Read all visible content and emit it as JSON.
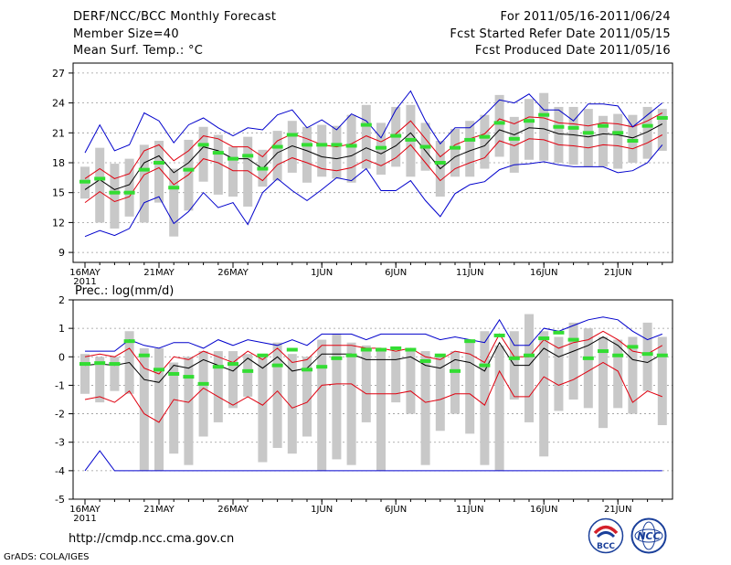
{
  "header": {
    "title": "DERF/NCC/BCC Monthly Forecast",
    "member_size": "Member Size=40",
    "variable": "Mean Surf. Temp.: °C",
    "period": "For 2011/05/16-2011/06/24",
    "fcst_started": "Fcst Started Refer Date 2011/05/15",
    "fcst_produced": "Fcst Produced Date 2011/05/16"
  },
  "footer": {
    "url": "http://cmdp.ncc.cma.gov.cn",
    "credit": "GrADS: COLA/IGES",
    "logo_left_text": "BCC",
    "logo_right_text": "NCC"
  },
  "colors": {
    "mean": "#000000",
    "spread": "#e0000f",
    "extreme": "#0000cc",
    "box": "#c8c8c8",
    "marker": "#33dd33"
  },
  "chart_data": [
    {
      "type": "line",
      "title": "Mean Surf. Temp.: °C",
      "days": 40,
      "x_tick_labels": [
        "16MAY",
        "21MAY",
        "26MAY",
        "1JUN",
        "6JUN",
        "11JUN",
        "16JUN",
        "21JUN"
      ],
      "x_tick_days": [
        0,
        5,
        10,
        16,
        21,
        26,
        31,
        36
      ],
      "year_label": "2011",
      "ylim": [
        8,
        28
      ],
      "y_ticks": [
        9,
        12,
        15,
        18,
        21,
        24,
        27
      ],
      "series": [
        {
          "name": "ensemble mean",
          "values": [
            15.3,
            16.3,
            15.3,
            15.8,
            18.0,
            18.7,
            17.0,
            18.0,
            19.6,
            19.2,
            18.4,
            18.4,
            17.4,
            19.0,
            19.7,
            19.2,
            18.6,
            18.4,
            18.7,
            19.5,
            18.9,
            19.7,
            21.0,
            19.2,
            17.4,
            18.6,
            19.2,
            19.7,
            21.3,
            20.8,
            21.5,
            21.4,
            20.9,
            20.8,
            20.6,
            20.9,
            20.8,
            20.5,
            21.1,
            21.9
          ]
        },
        {
          "name": "upper spread",
          "values": [
            16.4,
            17.4,
            16.4,
            16.9,
            19.2,
            19.8,
            18.2,
            19.2,
            20.7,
            20.4,
            19.6,
            19.6,
            18.6,
            20.2,
            20.9,
            20.4,
            19.8,
            19.6,
            19.9,
            20.7,
            20.1,
            20.9,
            22.2,
            20.4,
            18.6,
            19.8,
            20.4,
            20.9,
            22.4,
            21.9,
            22.6,
            22.5,
            22.0,
            21.9,
            21.7,
            22.0,
            21.9,
            21.6,
            22.2,
            23.0
          ]
        },
        {
          "name": "lower spread",
          "values": [
            14.0,
            15.1,
            14.1,
            14.6,
            16.8,
            17.5,
            15.8,
            16.8,
            18.4,
            18.0,
            17.2,
            17.2,
            16.2,
            17.8,
            18.5,
            18.0,
            17.4,
            17.2,
            17.5,
            18.3,
            17.7,
            18.5,
            19.8,
            18.0,
            16.2,
            17.4,
            18.0,
            18.5,
            20.2,
            19.7,
            20.4,
            20.3,
            19.8,
            19.7,
            19.5,
            19.8,
            19.7,
            19.4,
            20.0,
            20.8
          ]
        },
        {
          "name": "ensemble max",
          "values": [
            19.0,
            21.8,
            19.2,
            19.8,
            23.0,
            22.2,
            20.0,
            21.8,
            22.5,
            21.5,
            20.7,
            21.5,
            21.3,
            22.8,
            23.3,
            21.5,
            22.3,
            21.3,
            22.9,
            22.2,
            20.5,
            23.3,
            25.2,
            22.2,
            19.9,
            21.5,
            21.5,
            22.8,
            24.3,
            24.0,
            24.9,
            23.3,
            23.3,
            22.2,
            23.9,
            23.9,
            23.7,
            21.6,
            22.8,
            24.0
          ]
        },
        {
          "name": "ensemble min",
          "values": [
            10.6,
            11.2,
            10.7,
            11.4,
            14.0,
            14.6,
            11.9,
            13.1,
            15.0,
            13.5,
            14.0,
            11.8,
            15.0,
            16.4,
            15.2,
            14.2,
            15.3,
            16.5,
            16.2,
            17.4,
            15.2,
            15.2,
            16.2,
            14.2,
            12.6,
            14.9,
            15.8,
            16.1,
            17.3,
            17.8,
            17.9,
            18.1,
            17.8,
            17.6,
            17.6,
            17.6,
            17.0,
            17.2,
            18.0,
            19.8
          ]
        }
      ],
      "box_ranges": [
        [
          14.4,
          17.6
        ],
        [
          12.0,
          19.5
        ],
        [
          11.4,
          17.9
        ],
        [
          12.6,
          18.4
        ],
        [
          12.0,
          19.8
        ],
        [
          14.0,
          20.2
        ],
        [
          10.6,
          17.4
        ],
        [
          13.2,
          20.3
        ],
        [
          16.1,
          21.6
        ],
        [
          14.8,
          20.8
        ],
        [
          14.6,
          19.6
        ],
        [
          13.6,
          20.6
        ],
        [
          15.6,
          19.3
        ],
        [
          16.2,
          21.2
        ],
        [
          17.0,
          22.2
        ],
        [
          16.0,
          21.6
        ],
        [
          16.6,
          21.8
        ],
        [
          16.4,
          21.7
        ],
        [
          16.0,
          22.8
        ],
        [
          17.4,
          23.8
        ],
        [
          16.8,
          22.0
        ],
        [
          17.6,
          23.6
        ],
        [
          16.6,
          23.8
        ],
        [
          17.2,
          22.0
        ],
        [
          14.6,
          20.2
        ],
        [
          16.6,
          21.4
        ],
        [
          16.6,
          22.2
        ],
        [
          17.4,
          22.8
        ],
        [
          18.6,
          24.8
        ],
        [
          17.0,
          22.6
        ],
        [
          18.3,
          24.4
        ],
        [
          18.2,
          25.0
        ],
        [
          18.0,
          23.6
        ],
        [
          17.8,
          23.6
        ],
        [
          17.6,
          23.4
        ],
        [
          17.6,
          22.7
        ],
        [
          17.4,
          22.9
        ],
        [
          18.0,
          22.8
        ],
        [
          18.4,
          23.6
        ],
        [
          19.2,
          23.4
        ]
      ],
      "markers": [
        16.1,
        16.4,
        15.0,
        15.0,
        17.3,
        18.0,
        15.5,
        17.3,
        19.8,
        19.0,
        18.4,
        18.7,
        17.4,
        19.6,
        20.8,
        19.8,
        19.8,
        19.8,
        19.7,
        21.8,
        19.5,
        20.7,
        20.3,
        19.6,
        18.0,
        19.5,
        20.3,
        20.6,
        22.0,
        20.4,
        22.2,
        22.8,
        21.6,
        21.5,
        21.0,
        21.7,
        21.0,
        20.2,
        21.7,
        22.5
      ]
    },
    {
      "type": "line",
      "title": "Prec.: log(mm/d)",
      "days": 40,
      "x_tick_labels": [
        "16MAY",
        "21MAY",
        "26MAY",
        "1JUN",
        "6JUN",
        "11JUN",
        "16JUN",
        "21JUN"
      ],
      "x_tick_days": [
        0,
        5,
        10,
        16,
        21,
        26,
        31,
        36
      ],
      "year_label": "2011",
      "ylim": [
        -5,
        2
      ],
      "y_ticks": [
        -5,
        -4,
        -3,
        -2,
        -1,
        0,
        1,
        2
      ],
      "series": [
        {
          "name": "ensemble mean",
          "values": [
            -0.3,
            -0.25,
            -0.3,
            -0.2,
            -0.8,
            -0.9,
            -0.3,
            -0.4,
            -0.1,
            -0.3,
            -0.5,
            -0.05,
            -0.4,
            0.0,
            -0.5,
            -0.4,
            0.1,
            0.1,
            0.1,
            -0.1,
            -0.1,
            -0.1,
            0.0,
            -0.3,
            -0.4,
            -0.1,
            -0.2,
            -0.5,
            0.5,
            -0.3,
            -0.3,
            0.3,
            0.0,
            0.2,
            0.4,
            0.7,
            0.4,
            -0.1,
            -0.2,
            0.1
          ]
        },
        {
          "name": "upper spread",
          "values": [
            0.0,
            0.1,
            0.0,
            0.3,
            -0.4,
            -0.6,
            0.0,
            -0.1,
            0.2,
            0.0,
            -0.2,
            0.2,
            -0.1,
            0.3,
            -0.2,
            -0.1,
            0.4,
            0.4,
            0.4,
            0.3,
            0.3,
            0.2,
            0.3,
            0.0,
            -0.1,
            0.2,
            0.1,
            -0.2,
            0.8,
            0.0,
            0.0,
            0.6,
            0.3,
            0.5,
            0.6,
            0.9,
            0.6,
            0.2,
            0.1,
            0.4
          ]
        },
        {
          "name": "lower spread",
          "values": [
            -1.5,
            -1.4,
            -1.6,
            -1.2,
            -2.0,
            -2.3,
            -1.5,
            -1.6,
            -1.1,
            -1.4,
            -1.7,
            -1.4,
            -1.7,
            -1.2,
            -1.8,
            -1.6,
            -1.0,
            -0.95,
            -0.95,
            -1.3,
            -1.3,
            -1.3,
            -1.2,
            -1.6,
            -1.5,
            -1.3,
            -1.3,
            -1.7,
            -0.5,
            -1.4,
            -1.4,
            -0.7,
            -1.0,
            -0.8,
            -0.5,
            -0.2,
            -0.5,
            -1.6,
            -1.2,
            -1.4
          ]
        },
        {
          "name": "ensemble max",
          "values": [
            0.2,
            0.2,
            0.2,
            0.6,
            0.4,
            0.3,
            0.5,
            0.5,
            0.3,
            0.6,
            0.4,
            0.6,
            0.5,
            0.4,
            0.6,
            0.4,
            0.8,
            0.8,
            0.8,
            0.6,
            0.8,
            0.8,
            0.8,
            0.8,
            0.6,
            0.7,
            0.6,
            0.5,
            1.3,
            0.4,
            0.4,
            1.0,
            0.9,
            1.1,
            1.3,
            1.4,
            1.3,
            0.9,
            0.6,
            0.8
          ]
        },
        {
          "name": "ensemble min",
          "values": [
            -4.0,
            -3.3,
            -4.0,
            -4.0,
            -4.0,
            -4.0,
            -4.0,
            -4.0,
            -4.0,
            -4.0,
            -4.0,
            -4.0,
            -4.0,
            -4.0,
            -4.0,
            -4.0,
            -4.0,
            -4.0,
            -4.0,
            -4.0,
            -4.0,
            -4.0,
            -4.0,
            -4.0,
            -4.0,
            -4.0,
            -4.0,
            -4.0,
            -4.0,
            -4.0,
            -4.0,
            -4.0,
            -4.0,
            -4.0,
            -4.0,
            -4.0,
            -4.0,
            -4.0,
            -4.0,
            -4.0
          ]
        }
      ],
      "box_ranges": [
        [
          -1.3,
          0.1
        ],
        [
          -1.6,
          0.0
        ],
        [
          -1.2,
          0.0
        ],
        [
          -1.3,
          0.9
        ],
        [
          -4.0,
          0.3
        ],
        [
          -4.0,
          0.3
        ],
        [
          -3.4,
          -0.2
        ],
        [
          -3.8,
          0.0
        ],
        [
          -2.8,
          0.2
        ],
        [
          -2.3,
          0.2
        ],
        [
          -1.8,
          0.2
        ],
        [
          -1.4,
          0.1
        ],
        [
          -3.7,
          0.0
        ],
        [
          -3.2,
          0.5
        ],
        [
          -3.4,
          0.1
        ],
        [
          -2.8,
          0.0
        ],
        [
          -4.0,
          0.6
        ],
        [
          -3.6,
          0.8
        ],
        [
          -3.8,
          0.5
        ],
        [
          -2.3,
          0.4
        ],
        [
          -4.0,
          0.2
        ],
        [
          -1.6,
          0.2
        ],
        [
          -2.0,
          0.3
        ],
        [
          -3.8,
          0.2
        ],
        [
          -2.6,
          0.1
        ],
        [
          -2.0,
          0.2
        ],
        [
          -2.7,
          0.6
        ],
        [
          -3.8,
          0.9
        ],
        [
          -4.0,
          0.4
        ],
        [
          -1.5,
          0.9
        ],
        [
          -2.3,
          1.5
        ],
        [
          -3.5,
          0.9
        ],
        [
          -1.9,
          0.7
        ],
        [
          -1.5,
          1.2
        ],
        [
          -1.8,
          1.0
        ],
        [
          -2.5,
          0.7
        ],
        [
          -1.8,
          0.6
        ],
        [
          -2.0,
          0.7
        ],
        [
          -1.2,
          1.2
        ],
        [
          -2.4,
          0.7
        ]
      ],
      "markers": [
        -0.25,
        -0.22,
        -0.25,
        0.55,
        0.05,
        -0.45,
        -0.6,
        -0.7,
        -0.95,
        -0.35,
        -0.25,
        -0.5,
        0.05,
        -0.3,
        0.25,
        -0.45,
        -0.35,
        -0.05,
        0.05,
        0.25,
        0.25,
        0.3,
        0.25,
        -0.15,
        0.05,
        -0.5,
        0.55,
        -0.3,
        0.75,
        -0.05,
        0.05,
        0.65,
        0.85,
        0.6,
        -0.05,
        0.2,
        0.05,
        0.35,
        0.1,
        0.05
      ]
    }
  ]
}
